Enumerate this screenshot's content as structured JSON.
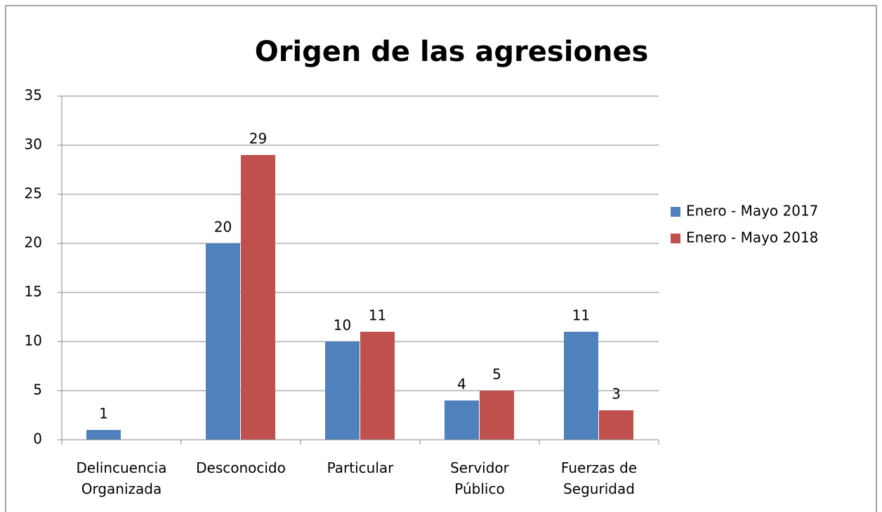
{
  "chart_data": {
    "type": "bar",
    "title": "Origen de las agresiones",
    "categories": [
      "Delincuencia Organizada",
      "Desconocido",
      "Particular",
      "Servidor Público",
      "Fuerzas de Seguridad"
    ],
    "series": [
      {
        "name": "Enero - Mayo 2017",
        "color": "#4f81bd",
        "values": [
          1,
          20,
          10,
          4,
          11
        ]
      },
      {
        "name": "Enero - Mayo 2018",
        "color": "#c0504d",
        "values": [
          null,
          29,
          11,
          5,
          3
        ]
      }
    ],
    "ylim": [
      0,
      35
    ],
    "yticks": [
      0,
      5,
      10,
      15,
      20,
      25,
      30,
      35
    ],
    "grid": true,
    "legend": "right"
  }
}
